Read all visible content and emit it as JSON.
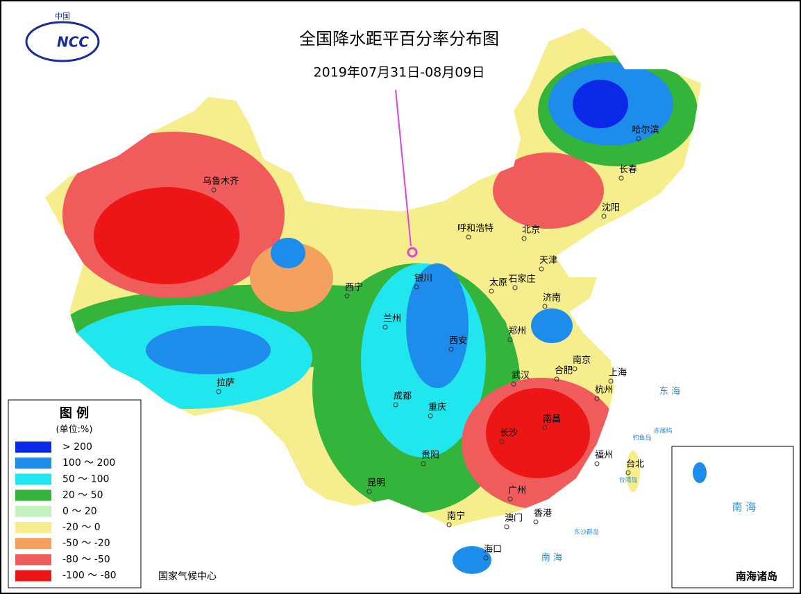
{
  "header": {
    "logo_country": "中国",
    "logo_text": "NCC",
    "title": "全国降水距平百分率分布图",
    "subtitle": "2019年07月31日-08月09日"
  },
  "legend": {
    "title": "图 例",
    "unit": "(单位:%)",
    "items": [
      {
        "label": "> 200",
        "color": "#0a28e6"
      },
      {
        "label": "100 ～ 200",
        "color": "#1e8cea"
      },
      {
        "label": "50 ～ 100",
        "color": "#22e6ee"
      },
      {
        "label": "20 ～ 50",
        "color": "#34b43a"
      },
      {
        "label": "0 ～ 20",
        "color": "#c6f2c2"
      },
      {
        "label": "-20 ～ 0",
        "color": "#f6ee8c"
      },
      {
        "label": "-50 ～ -20",
        "color": "#f4a05e"
      },
      {
        "label": "-80 ～ -50",
        "color": "#f05c5c"
      },
      {
        "label": "-100 ～ -80",
        "color": "#ec1616"
      }
    ]
  },
  "cities": [
    "乌鲁木齐",
    "呼和浩特",
    "北京",
    "哈尔滨",
    "长春",
    "沈阳",
    "天津",
    "银川",
    "西宁",
    "兰州",
    "太原",
    "石家庄",
    "济南",
    "郑州",
    "西安",
    "南京",
    "合肥",
    "上海",
    "武汉",
    "杭州",
    "拉萨",
    "成都",
    "重庆",
    "长沙",
    "南昌",
    "福州",
    "台北",
    "贵阳",
    "昆明",
    "南宁",
    "广州",
    "澳门",
    "香港",
    "海口"
  ],
  "sea_labels": [
    "东 海",
    "南 海",
    "台湾岛",
    "钓鱼岛",
    "赤尾屿",
    "东沙群岛"
  ],
  "inset": {
    "label": "南海诸岛",
    "sea_label": "南 海"
  },
  "footer": "国家气候中心"
}
